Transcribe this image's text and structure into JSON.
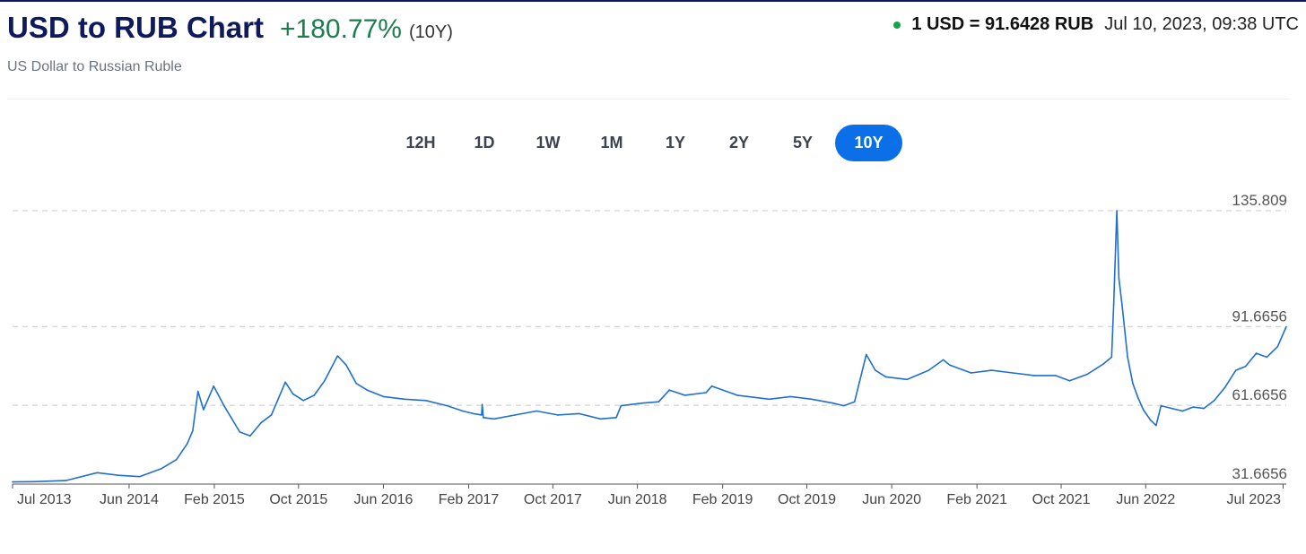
{
  "header": {
    "title": "USD to RUB Chart",
    "change": "+180.77%",
    "period": "(10Y)",
    "subtitle": "US Dollar to Russian Ruble",
    "rate": "1 USD = 91.6428 RUB",
    "timestamp": "Jul 10, 2023, 09:38 UTC"
  },
  "ranges": [
    "12H",
    "1D",
    "1W",
    "1M",
    "1Y",
    "2Y",
    "5Y",
    "10Y"
  ],
  "active_range": "10Y",
  "colors": {
    "line": "#1f6fd1",
    "accent": "#0b6fe8",
    "positive": "#1e7d4e",
    "live_dot": "#16a34a",
    "title": "#0e1a5c"
  },
  "chart_data": {
    "type": "line",
    "title": "",
    "xlabel": "",
    "ylabel": "",
    "ylim": [
      31.6656,
      135.809
    ],
    "y_ticks": [
      135.809,
      91.6656,
      61.6656,
      31.6656
    ],
    "x_ticks": [
      "Jul 2013",
      "Jun 2014",
      "Feb 2015",
      "Oct 2015",
      "Jun 2016",
      "Feb 2017",
      "Oct 2017",
      "Jun 2018",
      "Feb 2019",
      "Oct 2019",
      "Jun 2020",
      "Feb 2021",
      "Oct 2021",
      "Jun 2022",
      "Jul 2023"
    ],
    "grid": "horizontal dashed",
    "legend": "none",
    "series": [
      {
        "x": [
          "2013-07-01",
          "2013-09-01",
          "2013-12-01",
          "2014-03-01",
          "2014-05-01",
          "2014-07-01",
          "2014-09-01",
          "2014-10-15",
          "2014-11-15",
          "2014-12-01",
          "2014-12-16",
          "2015-01-01",
          "2015-01-30",
          "2015-03-01",
          "2015-04-15",
          "2015-05-15",
          "2015-06-15",
          "2015-07-15",
          "2015-08-24",
          "2015-09-15",
          "2015-10-15",
          "2015-11-15",
          "2015-12-15",
          "2016-01-21",
          "2016-02-15",
          "2016-03-15",
          "2016-04-15",
          "2016-06-01",
          "2016-08-01",
          "2016-10-01",
          "2016-12-01",
          "2017-01-15",
          "2017-02-15",
          "2017-03-10",
          "2017-03-12",
          "2017-03-15",
          "2017-04-15",
          "2017-06-15",
          "2017-08-15",
          "2017-10-15",
          "2017-12-15",
          "2018-02-15",
          "2018-04-01",
          "2018-04-15",
          "2018-06-15",
          "2018-08-01",
          "2018-09-01",
          "2018-10-15",
          "2018-12-15",
          "2019-01-01",
          "2019-03-15",
          "2019-06-15",
          "2019-08-15",
          "2019-10-15",
          "2019-12-15",
          "2020-01-15",
          "2020-02-15",
          "2020-03-20",
          "2020-04-15",
          "2020-05-15",
          "2020-07-15",
          "2020-09-15",
          "2020-10-27",
          "2020-11-15",
          "2021-01-15",
          "2021-03-15",
          "2021-05-15",
          "2021-07-15",
          "2021-09-15",
          "2021-10-25",
          "2021-12-15",
          "2022-01-31",
          "2022-02-23",
          "2022-03-01",
          "2022-03-10",
          "2022-03-16",
          "2022-03-25",
          "2022-04-10",
          "2022-04-25",
          "2022-05-10",
          "2022-05-25",
          "2022-06-15",
          "2022-07-01",
          "2022-07-15",
          "2022-08-15",
          "2022-09-15",
          "2022-10-15",
          "2022-11-15",
          "2022-12-15",
          "2023-01-15",
          "2023-02-15",
          "2023-03-15",
          "2023-04-15",
          "2023-05-15",
          "2023-06-15",
          "2023-07-10"
        ],
        "y": [
          32.5,
          32.6,
          33.0,
          36.0,
          35.0,
          34.5,
          37.5,
          41.0,
          47.0,
          52.0,
          67.0,
          60.0,
          69.0,
          61.5,
          51.5,
          50.0,
          55.0,
          58.0,
          70.5,
          66.0,
          63.5,
          65.5,
          71.0,
          80.5,
          77.0,
          70.0,
          67.5,
          65.0,
          64.0,
          63.5,
          61.5,
          59.5,
          58.5,
          58.0,
          62.0,
          57.0,
          56.5,
          58.0,
          59.5,
          58.0,
          58.5,
          56.5,
          57.0,
          61.5,
          62.5,
          63.0,
          67.5,
          65.5,
          66.5,
          69.0,
          65.5,
          64.0,
          65.0,
          64.0,
          62.5,
          61.5,
          63.0,
          81.0,
          75.0,
          72.5,
          71.5,
          75.0,
          79.0,
          77.0,
          74.0,
          75.0,
          74.0,
          73.0,
          73.0,
          71.0,
          73.5,
          77.5,
          80.0,
          100.0,
          135.8,
          110.0,
          100.0,
          80.0,
          70.0,
          64.5,
          60.0,
          56.0,
          54.0,
          61.5,
          60.5,
          59.5,
          61.0,
          60.5,
          63.5,
          68.5,
          75.0,
          76.5,
          81.5,
          80.0,
          84.0,
          91.6
        ]
      }
    ]
  }
}
